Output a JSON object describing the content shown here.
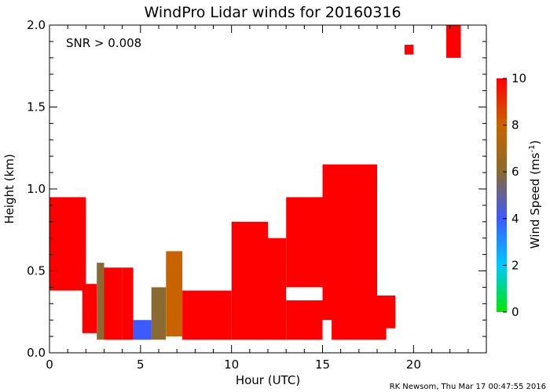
{
  "chart_data": {
    "type": "heatmap",
    "title": "WindPro Lidar winds for 20160316",
    "xlabel": "Hour (UTC)",
    "ylabel": "Height (km)",
    "xlim": [
      0,
      24
    ],
    "ylim": [
      0,
      2.0
    ],
    "x_ticks": [
      "0",
      "5",
      "10",
      "15",
      "20"
    ],
    "x_tick_values": [
      0,
      5,
      10,
      15,
      20
    ],
    "y_ticks": [
      "0.0",
      "0.5",
      "1.0",
      "1.5",
      "2.0"
    ],
    "y_tick_values": [
      0,
      0.5,
      1.0,
      1.5,
      2.0
    ],
    "annotation": "SNR > 0.008",
    "colorbar": {
      "label": "Wind Speed (ms",
      "label_sup": "-1",
      "label_end": ")",
      "range": [
        0,
        10
      ],
      "ticks": [
        "0",
        "2",
        "4",
        "6",
        "8",
        "10"
      ],
      "tick_values": [
        0,
        2,
        4,
        6,
        8,
        10
      ],
      "colors": [
        "#00e600",
        "#00c8ff",
        "#3c5aff",
        "#8a6a30",
        "#c86400",
        "#ff0000"
      ]
    },
    "regions": [
      {
        "x": [
          0.0,
          2.0
        ],
        "y": [
          0.38,
          0.95
        ],
        "speed": 10
      },
      {
        "x": [
          1.8,
          2.6
        ],
        "y": [
          0.12,
          0.42
        ],
        "speed": 9
      },
      {
        "x": [
          2.6,
          3.0
        ],
        "y": [
          0.08,
          0.55
        ],
        "speed": 6
      },
      {
        "x": [
          3.0,
          4.0
        ],
        "y": [
          0.08,
          0.52
        ],
        "speed": 9
      },
      {
        "x": [
          4.0,
          4.6
        ],
        "y": [
          0.08,
          0.52
        ],
        "speed": 10
      },
      {
        "x": [
          4.6,
          5.6
        ],
        "y": [
          0.08,
          0.2
        ],
        "speed": 3
      },
      {
        "x": [
          5.6,
          6.4
        ],
        "y": [
          0.08,
          0.4
        ],
        "speed": 5
      },
      {
        "x": [
          6.4,
          7.3
        ],
        "y": [
          0.1,
          0.62
        ],
        "speed": 7
      },
      {
        "x": [
          7.3,
          10.0
        ],
        "y": [
          0.08,
          0.38
        ],
        "speed": 10
      },
      {
        "x": [
          10.0,
          12.0
        ],
        "y": [
          0.08,
          0.8
        ],
        "speed": 10
      },
      {
        "x": [
          12.0,
          13.0
        ],
        "y": [
          0.08,
          0.7
        ],
        "speed": 10
      },
      {
        "x": [
          13.0,
          15.0
        ],
        "y": [
          0.4,
          0.95
        ],
        "speed": 10
      },
      {
        "x": [
          13.0,
          15.0
        ],
        "y": [
          0.08,
          0.32
        ],
        "speed": 10
      },
      {
        "x": [
          15.0,
          18.0
        ],
        "y": [
          0.2,
          1.15
        ],
        "speed": 10
      },
      {
        "x": [
          15.5,
          18.5
        ],
        "y": [
          0.08,
          0.3
        ],
        "speed": 10
      },
      {
        "x": [
          18.0,
          19.0
        ],
        "y": [
          0.15,
          0.35
        ],
        "speed": 10
      },
      {
        "x": [
          21.8,
          22.6
        ],
        "y": [
          1.8,
          2.0
        ],
        "speed": 10
      },
      {
        "x": [
          19.5,
          20.0
        ],
        "y": [
          1.82,
          1.88
        ],
        "speed": 10
      }
    ]
  },
  "credit": "RK Newsom, Thu Mar 17 00:47:55 2016"
}
